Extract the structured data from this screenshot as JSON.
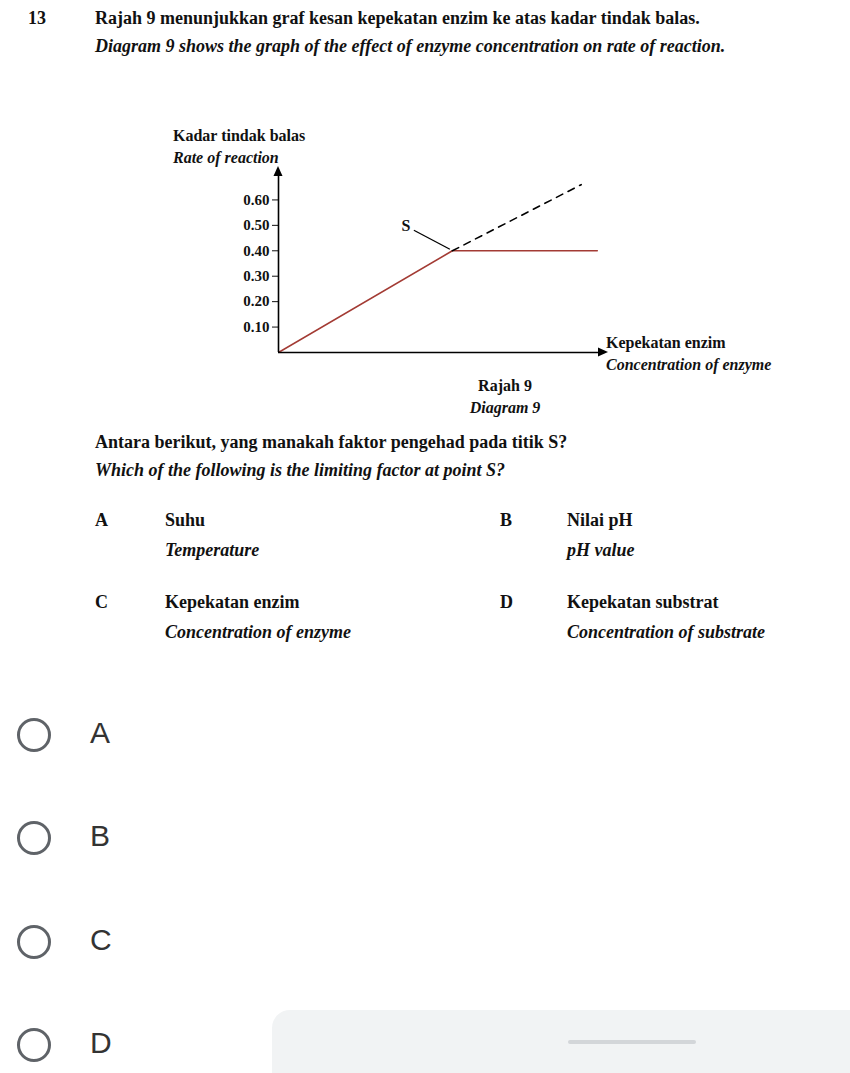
{
  "question_number": "13",
  "stem": [
    "Rajah 9 menunjukkan graf kesan kepekatan enzim ke atas kadar tindak balas.",
    "Diagram 9 shows the graph of the effect of enzyme concentration on rate of reaction."
  ],
  "chart_data": {
    "type": "line",
    "y_label": [
      "Kadar tindak balas",
      "Rate of reaction"
    ],
    "x_label": [
      "Kepekatan enzim",
      "Concentration of enzyme"
    ],
    "caption": [
      "Rajah 9",
      "Diagram 9"
    ],
    "xlim": [
      0,
      10
    ],
    "ylim": [
      0,
      0.7
    ],
    "yticks": [
      0.1,
      0.2,
      0.3,
      0.4,
      0.5,
      0.6
    ],
    "tick_labels": "y",
    "lines": [
      {
        "x": [
          0,
          5.4,
          9.9
        ],
        "values": [
          0,
          0.4,
          0.4
        ],
        "color": "#a33b34",
        "line_style": "solid"
      },
      {
        "x": [
          5.4,
          9.4
        ],
        "values": [
          0.4,
          0.66
        ],
        "color": "#000000",
        "line_style": "dashed"
      }
    ],
    "annotations": [
      {
        "text": "S",
        "x": 5.4,
        "y": 0.4
      }
    ]
  },
  "question": [
    "Antara berikut, yang manakah faktor pengehad pada titik S?",
    "Which of the following is the limiting factor at point S?"
  ],
  "options": [
    {
      "letter": "A",
      "text": "Suhu",
      "translation": "Temperature"
    },
    {
      "letter": "B",
      "text": "Nilai pH",
      "translation": "pH value"
    },
    {
      "letter": "C",
      "text": "Kepekatan enzim",
      "translation": "Concentration of enzyme"
    },
    {
      "letter": "D",
      "text": "Kepekatan substrat",
      "translation": "Concentration of substrate"
    }
  ],
  "choices": [
    "A",
    "B",
    "C",
    "D"
  ]
}
